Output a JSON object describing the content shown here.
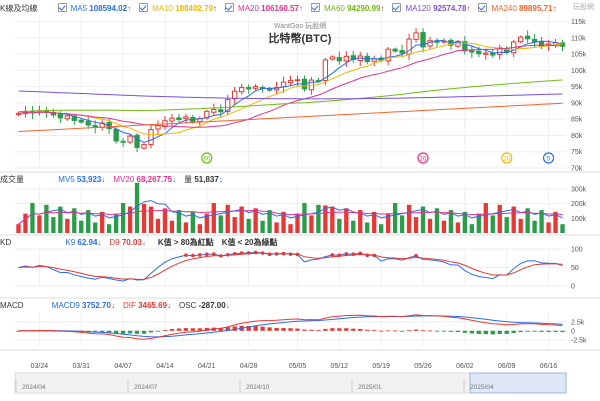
{
  "main_legend": {
    "title": "K線及均線",
    "ma": [
      {
        "label": "MA5",
        "value": "108594.02",
        "arrow": "↑",
        "color": "#2b6de8"
      },
      {
        "label": "MA10",
        "value": "108402.79",
        "arrow": "↑",
        "color": "#f2b705"
      },
      {
        "label": "MA20",
        "value": "106160.57",
        "arrow": "↑",
        "color": "#e0338c"
      },
      {
        "label": "MA60",
        "value": "94290.99",
        "arrow": "↑",
        "color": "#74b816"
      },
      {
        "label": "MA120",
        "value": "92574.78",
        "arrow": "↑",
        "color": "#7b4fd6"
      },
      {
        "label": "MA240",
        "value": "89895.71",
        "arrow": "↑",
        "color": "#f0642c"
      }
    ]
  },
  "title": "比特幣(BTC)",
  "subtitle": "WantGoo 玩股網",
  "logo_text": "玩股網",
  "volume_legend": {
    "title": "成交量",
    "items": [
      {
        "label": "MV5",
        "value": "53,923",
        "arrow": "↓",
        "color": "#2b6de8"
      },
      {
        "label": "MV20",
        "value": "68,267.75",
        "arrow": "↓",
        "color": "#e0338c"
      },
      {
        "label": "量",
        "value": "51,837",
        "arrow": "↓",
        "color": "#333333"
      }
    ]
  },
  "kd_legend": {
    "title": "KD",
    "items": [
      {
        "label": "K9",
        "value": "62.94",
        "arrow": "↓",
        "color": "#2b6de8"
      },
      {
        "label": "D9",
        "value": "70.03",
        "arrow": "↓",
        "color": "#e53935"
      }
    ],
    "notes": [
      "K值 > 80為紅點",
      "K值 < 20為綠點"
    ]
  },
  "macd_legend": {
    "title": "MACD",
    "items": [
      {
        "label": "MACD9",
        "value": "3752.70",
        "arrow": "↓",
        "color": "#2b6de8"
      },
      {
        "label": "DIF",
        "value": "3465.69",
        "arrow": "↓",
        "color": "#e53935"
      },
      {
        "label": "OSC",
        "value": "-287.00",
        "arrow": "↓",
        "color": "#333333"
      }
    ]
  },
  "chart_data": {
    "type": "candlestick",
    "price_axis": {
      "ticks": [
        "115k",
        "110k",
        "105k",
        "100k",
        "95k",
        "90k",
        "85k",
        "80k",
        "75k",
        "70k"
      ],
      "range": [
        70000,
        117000
      ]
    },
    "volume_axis": {
      "ticks": [
        "300k",
        "200k",
        "100k"
      ],
      "range": [
        0,
        320000
      ]
    },
    "kd_axis": {
      "ticks": [
        "100",
        "50",
        "0"
      ],
      "range": [
        0,
        100
      ]
    },
    "macd_axis": {
      "ticks": [
        "2.5k",
        "0",
        "-2.5k"
      ],
      "range": [
        -4200,
        5200
      ]
    },
    "date_labels": [
      "03/24",
      "03/31",
      "04/07",
      "04/14",
      "04/21",
      "04/28",
      "05/05",
      "05/12",
      "05/19",
      "05/26",
      "06/02",
      "06/09",
      "06/16"
    ],
    "timeline_labels": [
      "2024/04",
      "2024/07",
      "2024/10",
      "2025/01",
      "2025/04"
    ],
    "event_markers": [
      {
        "label": "60",
        "color": "#74b816",
        "date_index": 4
      },
      {
        "label": "20",
        "color": "#e0338c",
        "date_index": 9
      },
      {
        "label": "10",
        "color": "#f2b705",
        "date_index": 11
      },
      {
        "label": "5",
        "color": "#2b6de8",
        "date_index": 12
      }
    ],
    "closes": [
      86800,
      87300,
      86900,
      87600,
      87100,
      86300,
      85400,
      86000,
      84600,
      84100,
      83200,
      82500,
      83800,
      82100,
      78300,
      77900,
      79800,
      76300,
      77200,
      81800,
      83000,
      84500,
      85300,
      84900,
      85700,
      84300,
      85200,
      87400,
      88000,
      87300,
      91000,
      93600,
      94700,
      94300,
      95000,
      94500,
      93900,
      94700,
      96400,
      96900,
      97100,
      94300,
      97000,
      96800,
      103200,
      104100,
      102900,
      104300,
      103300,
      104400,
      102700,
      103500,
      103100,
      106500,
      105900,
      105300,
      109600,
      111500,
      107200,
      109100,
      108800,
      109000,
      107700,
      108900,
      106000,
      105600,
      105100,
      105300,
      104700,
      106900,
      105500,
      108700,
      110200,
      109700,
      108800,
      107500,
      108100,
      108500,
      107400
    ]
  },
  "kd_red_dot_note": "K值 > 80為紅點"
}
